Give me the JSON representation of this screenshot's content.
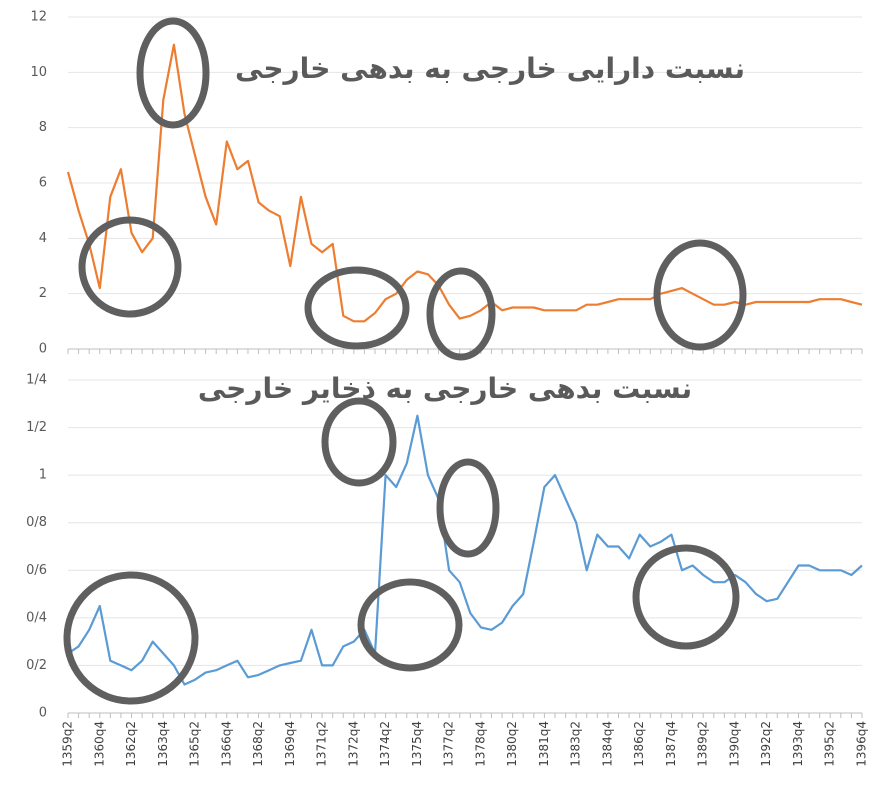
{
  "chart_data": [
    {
      "type": "line",
      "title": "نسبت دارایی خارجی به بدهی خارجی",
      "color": "#ed7d31",
      "grid": true,
      "ylim": [
        0,
        12
      ],
      "yticks": [
        0,
        2,
        4,
        6,
        8,
        10,
        12
      ],
      "values": [
        6.4,
        5.0,
        3.8,
        2.2,
        5.5,
        6.5,
        4.2,
        3.5,
        4.0,
        9.0,
        11.0,
        8.5,
        7.0,
        5.5,
        4.5,
        7.5,
        6.5,
        6.8,
        5.3,
        5.0,
        4.8,
        3.0,
        5.5,
        3.8,
        3.5,
        3.8,
        1.2,
        1.0,
        1.0,
        1.3,
        1.8,
        2.0,
        2.5,
        2.8,
        2.7,
        2.3,
        1.6,
        1.1,
        1.2,
        1.4,
        1.7,
        1.4,
        1.5,
        1.5,
        1.5,
        1.4,
        1.4,
        1.4,
        1.4,
        1.6,
        1.6,
        1.7,
        1.8,
        1.8,
        1.8,
        1.8,
        2.0,
        2.1,
        2.2,
        2.0,
        1.8,
        1.6,
        1.6,
        1.7,
        1.6,
        1.7,
        1.7,
        1.7,
        1.7,
        1.7,
        1.7,
        1.8,
        1.8,
        1.8,
        1.7,
        1.6
      ]
    },
    {
      "type": "line",
      "title": "نسبت بدهی خارجی به ذخایر خارجی",
      "color": "#5b9bd5",
      "grid": true,
      "ylim": [
        0,
        1.4
      ],
      "yticks": [
        0,
        {
          "value": 0.2,
          "label": "0/2"
        },
        {
          "value": 0.4,
          "label": "0/4"
        },
        {
          "value": 0.6,
          "label": "0/6"
        },
        {
          "value": 0.8,
          "label": "0/8"
        },
        1,
        {
          "value": 1.2,
          "label": "1/2"
        },
        {
          "value": 1.4,
          "label": "1/4"
        }
      ],
      "categories": [
        "1359q2",
        null,
        null,
        "1360q4",
        null,
        null,
        "1362q2",
        null,
        null,
        "1363q4",
        null,
        null,
        "1365q2",
        null,
        null,
        "1366q4",
        null,
        null,
        "1368q2",
        null,
        null,
        "1369q4",
        null,
        null,
        "1371q2",
        null,
        null,
        "1372q4",
        null,
        null,
        "1374q2",
        null,
        null,
        "1375q4",
        null,
        null,
        "1377q2",
        null,
        null,
        "1378q4",
        null,
        null,
        "1380q2",
        null,
        null,
        "1381q4",
        null,
        null,
        "1383q2",
        null,
        null,
        "1384q4",
        null,
        null,
        "1386q2",
        null,
        null,
        "1387q4",
        null,
        null,
        "1389q2",
        null,
        null,
        "1390q4",
        null,
        null,
        "1392q2",
        null,
        null,
        "1393q4",
        null,
        null,
        "1395q2",
        null,
        null,
        "1396q4"
      ],
      "values": [
        0.25,
        0.28,
        0.35,
        0.45,
        0.22,
        0.2,
        0.18,
        0.22,
        0.3,
        0.25,
        0.2,
        0.12,
        0.14,
        0.17,
        0.18,
        0.2,
        0.22,
        0.15,
        0.16,
        0.18,
        0.2,
        0.21,
        0.22,
        0.35,
        0.2,
        0.2,
        0.28,
        0.3,
        0.35,
        0.25,
        1.0,
        0.95,
        1.05,
        1.25,
        1.0,
        0.9,
        0.6,
        0.55,
        0.42,
        0.36,
        0.35,
        0.38,
        0.45,
        0.5,
        0.72,
        0.95,
        1.0,
        0.9,
        0.8,
        0.6,
        0.75,
        0.7,
        0.7,
        0.65,
        0.75,
        0.7,
        0.72,
        0.75,
        0.6,
        0.62,
        0.58,
        0.55,
        0.55,
        0.58,
        0.55,
        0.5,
        0.47,
        0.48,
        0.55,
        0.62,
        0.62,
        0.6,
        0.6,
        0.6,
        0.58,
        0.62
      ]
    }
  ]
}
